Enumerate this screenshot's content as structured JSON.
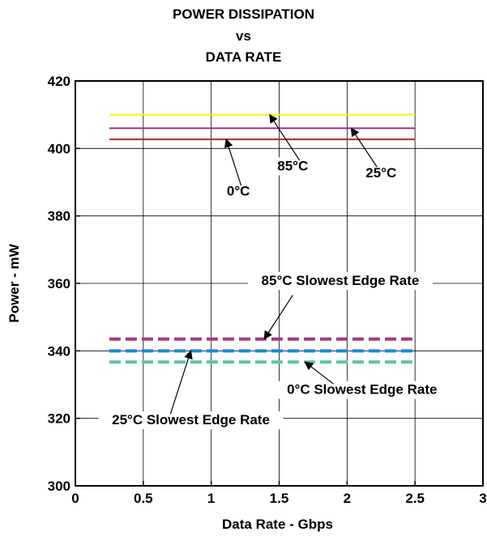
{
  "chart_data": {
    "type": "line",
    "title": [
      "POWER DISSIPATION",
      "vs",
      "DATA RATE"
    ],
    "xlabel": "Data Rate - Gbps",
    "ylabel": "Power - mW",
    "xlim": [
      0,
      3
    ],
    "ylim": [
      300,
      420
    ],
    "xticks": [
      0,
      0.5,
      1,
      1.5,
      2,
      2.5,
      3
    ],
    "xtick_labels": [
      "0",
      "0.5",
      "1",
      "1.5",
      "2",
      "2.5",
      "3"
    ],
    "yticks": [
      300,
      320,
      340,
      360,
      380,
      400,
      420
    ],
    "ytick_labels": [
      "300",
      "320",
      "340",
      "360",
      "380",
      "400",
      "420"
    ],
    "grid": true,
    "series": [
      {
        "name": "85°C",
        "color": "#f5f50a",
        "style": "solid",
        "x": [
          0.25,
          2.5
        ],
        "y": [
          410,
          410
        ]
      },
      {
        "name": "25°C",
        "color": "#9a2a9a",
        "style": "solid",
        "x": [
          0.25,
          2.5
        ],
        "y": [
          406,
          406
        ]
      },
      {
        "name": "0°C",
        "color": "#b02a2a",
        "style": "solid",
        "x": [
          0.25,
          2.5
        ],
        "y": [
          402.7,
          402.7
        ]
      },
      {
        "name": "85°C Slowest Edge Rate",
        "color": "#a23b7e",
        "style": "dashed",
        "x": [
          0.25,
          2.5
        ],
        "y": [
          343.5,
          343.5
        ]
      },
      {
        "name": "25°C Slowest Edge Rate",
        "color": "#1a8ad4",
        "style": "dashed",
        "x": [
          0.25,
          2.5
        ],
        "y": [
          340,
          340
        ]
      },
      {
        "name": "0°C Slowest Edge Rate",
        "color": "#5cc4a8",
        "style": "dashed",
        "x": [
          0.25,
          2.5
        ],
        "y": [
          336.7,
          336.7
        ]
      }
    ],
    "annotations": [
      {
        "text": "85°C",
        "series": 0,
        "text_x": 1.6,
        "text_y": 393.5,
        "arrow_from": [
          1.65,
          396.5
        ],
        "arrow_to": [
          1.43,
          410
        ]
      },
      {
        "text": "25°C",
        "series": 1,
        "text_x": 2.25,
        "text_y": 391.5,
        "arrow_from": [
          2.22,
          394.5
        ],
        "arrow_to": [
          2.03,
          406
        ]
      },
      {
        "text": "0°C",
        "series": 2,
        "text_x": 1.2,
        "text_y": 386,
        "arrow_from": [
          1.22,
          389
        ],
        "arrow_to": [
          1.11,
          402.7
        ]
      },
      {
        "text": "85°C Slowest Edge Rate",
        "series": 3,
        "text_x": 1.95,
        "text_y": 359.5,
        "arrow_from": [
          1.6,
          356.5
        ],
        "arrow_to": [
          1.39,
          343.5
        ]
      },
      {
        "text": "0°C Slowest Edge Rate",
        "series": 5,
        "text_x": 2.11,
        "text_y": 327.2,
        "arrow_from": [
          1.9,
          330.2
        ],
        "arrow_to": [
          1.69,
          336.7
        ]
      },
      {
        "text": "25°C Slowest Edge Rate",
        "series": 4,
        "text_x": 0.85,
        "text_y": 318.2,
        "arrow_from": [
          0.7,
          321.3
        ],
        "arrow_to": [
          0.85,
          340
        ]
      }
    ]
  }
}
